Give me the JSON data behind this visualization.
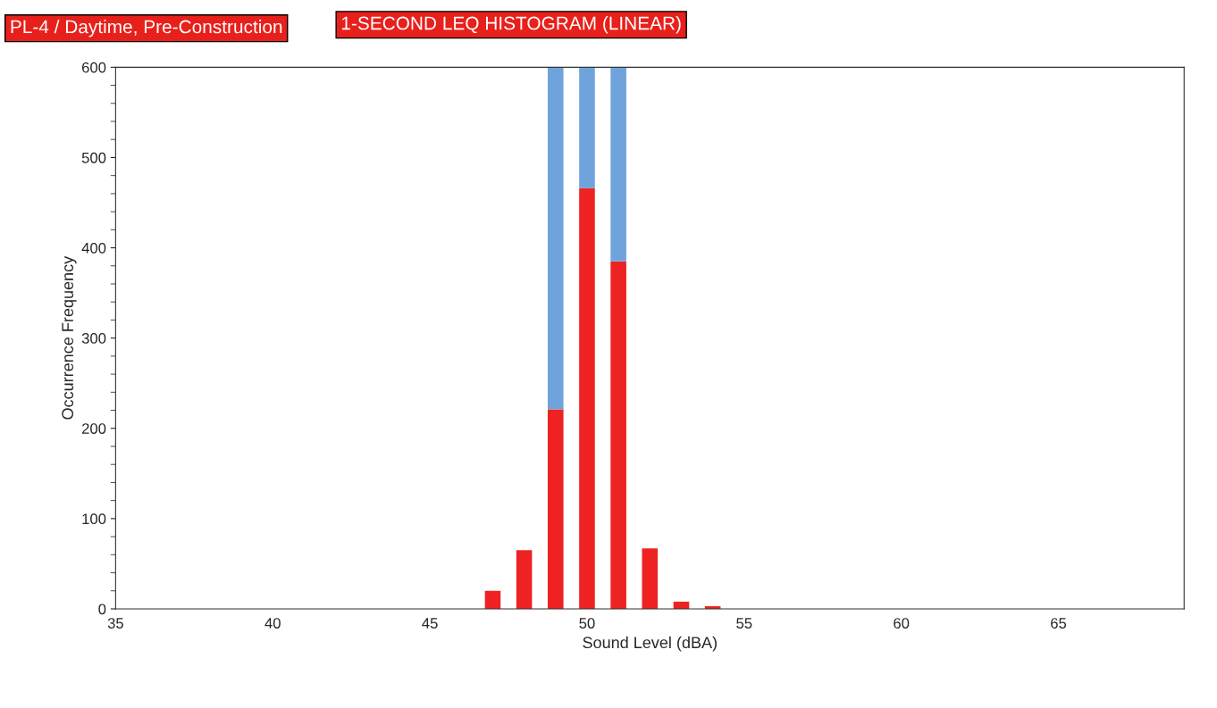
{
  "chart_data": {
    "type": "bar",
    "title": "PL-4 / Daytime, Pre-Construction",
    "subtitle": "1-SECOND LEQ HISTOGRAM (LINEAR)",
    "xlabel": "Sound Level (dBA)",
    "ylabel": "Occurrence Frequency",
    "x": [
      47,
      48,
      49,
      50,
      51,
      52,
      53,
      54
    ],
    "stacked": true,
    "series": [
      {
        "color": "#ee2222",
        "values": [
          20,
          65,
          221,
          466,
          385,
          67,
          8,
          3
        ]
      },
      {
        "color": "#6fa3dc",
        "values": [
          0,
          0,
          379,
          134,
          215,
          0,
          0,
          0
        ]
      }
    ],
    "xlim": [
      35,
      69
    ],
    "xticks": [
      35,
      40,
      45,
      50,
      55,
      60,
      65
    ],
    "ylim": [
      0,
      600
    ],
    "yticks": [
      0,
      100,
      200,
      300,
      400,
      500,
      600
    ],
    "grid": false,
    "legend": false
  }
}
